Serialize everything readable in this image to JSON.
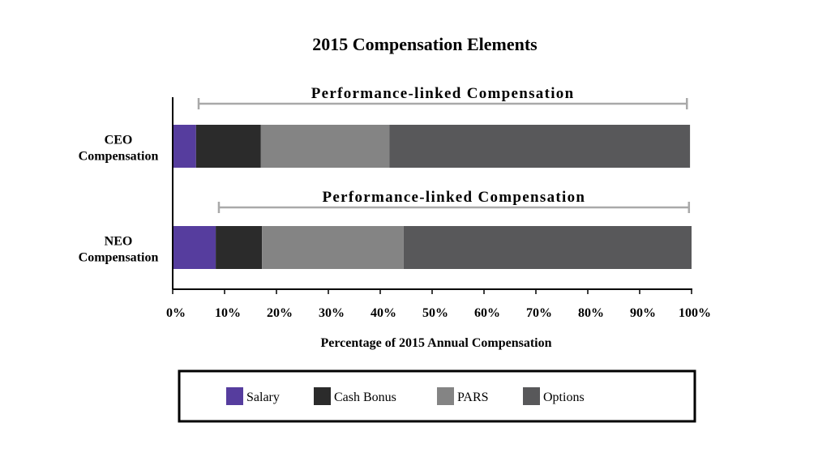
{
  "chart_data": {
    "type": "bar",
    "orientation": "horizontal",
    "stacked": true,
    "title": "2015 Compensation Elements",
    "xlabel": "Percentage of 2015 Annual Compensation",
    "ylabel": "",
    "xlim": [
      0,
      100
    ],
    "x_ticks": [
      "0%",
      "10%",
      "20%",
      "30%",
      "40%",
      "50%",
      "60%",
      "70%",
      "80%",
      "90%",
      "100%"
    ],
    "categories": [
      "CEO Compensation",
      "NEO Compensation"
    ],
    "category_lines": [
      [
        "CEO",
        "Compensation"
      ],
      [
        "NEO",
        "Compensation"
      ]
    ],
    "series": [
      {
        "name": "Salary",
        "color": "#563d9e",
        "values": [
          4.5,
          8.3
        ]
      },
      {
        "name": "Cash Bonus",
        "color": "#2b2b2b",
        "values": [
          12.5,
          8.9
        ]
      },
      {
        "name": "PARS",
        "color": "#848484",
        "values": [
          24.8,
          27.3
        ]
      },
      {
        "name": "Options",
        "color": "#58585a",
        "values": [
          57.9,
          55.5
        ]
      }
    ],
    "annotations": [
      {
        "text": "Performance-linked Compensation",
        "category": "CEO Compensation",
        "range": [
          5,
          99.1
        ]
      },
      {
        "text": "Performance-linked Compensation",
        "category": "NEO Compensation",
        "range": [
          8.9,
          99.5
        ]
      }
    ],
    "grid": false,
    "legend_position": "bottom"
  }
}
